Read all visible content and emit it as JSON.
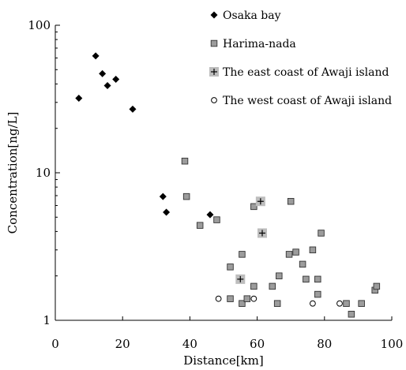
{
  "chart_data": {
    "type": "scatter",
    "xlabel": "Distance[km]",
    "ylabel": "Concentration[ng/L]",
    "xlim": [
      0,
      100
    ],
    "ylim": [
      1,
      100
    ],
    "yscale": "log",
    "x_ticks": [
      0,
      20,
      40,
      60,
      80,
      100
    ],
    "y_ticks": [
      1,
      10,
      100
    ],
    "x_tick_labels": [
      "0",
      "20",
      "40",
      "60",
      "80",
      "100"
    ],
    "y_tick_labels": [
      "1",
      "10",
      "100"
    ],
    "grid": false,
    "legend_position": "top-right",
    "series": [
      {
        "name": "Osaka bay",
        "marker": "diamond-filled",
        "color": "#000000",
        "points": [
          [
            7,
            32
          ],
          [
            12,
            62
          ],
          [
            14,
            47
          ],
          [
            15.5,
            39
          ],
          [
            18,
            43
          ],
          [
            23,
            27
          ],
          [
            32,
            6.9
          ],
          [
            33,
            5.4
          ],
          [
            46,
            5.2
          ]
        ]
      },
      {
        "name": "Harima-nada",
        "marker": "square-gray",
        "color": "#999999",
        "points": [
          [
            38.5,
            12
          ],
          [
            39,
            6.9
          ],
          [
            43,
            4.4
          ],
          [
            48,
            4.8
          ],
          [
            52,
            2.3
          ],
          [
            52,
            1.4
          ],
          [
            55.5,
            2.8
          ],
          [
            55.5,
            1.3
          ],
          [
            57,
            1.4
          ],
          [
            59,
            5.9
          ],
          [
            59,
            1.7
          ],
          [
            64.5,
            1.7
          ],
          [
            66,
            1.3
          ],
          [
            66.5,
            2.0
          ],
          [
            69.5,
            2.8
          ],
          [
            70,
            6.4
          ],
          [
            71.5,
            2.9
          ],
          [
            73.5,
            2.4
          ],
          [
            74.5,
            1.9
          ],
          [
            76.5,
            3.0
          ],
          [
            78,
            1.9
          ],
          [
            78,
            1.5
          ],
          [
            79,
            3.9
          ],
          [
            86.5,
            1.3
          ],
          [
            88,
            1.1
          ],
          [
            91,
            1.3
          ],
          [
            95,
            1.6
          ],
          [
            95.5,
            1.7
          ]
        ]
      },
      {
        "name": "The east coast of Awaji island",
        "marker": "square-plus",
        "color": "#bbbbbb",
        "points": [
          [
            55,
            1.9
          ],
          [
            61,
            6.4
          ],
          [
            61.5,
            3.9
          ]
        ]
      },
      {
        "name": "The west coast of Awaji island",
        "marker": "circle-open",
        "color": "#000000",
        "points": [
          [
            48.5,
            1.4
          ],
          [
            59,
            1.4
          ],
          [
            76.5,
            1.3
          ],
          [
            84.5,
            1.3
          ]
        ]
      }
    ]
  }
}
